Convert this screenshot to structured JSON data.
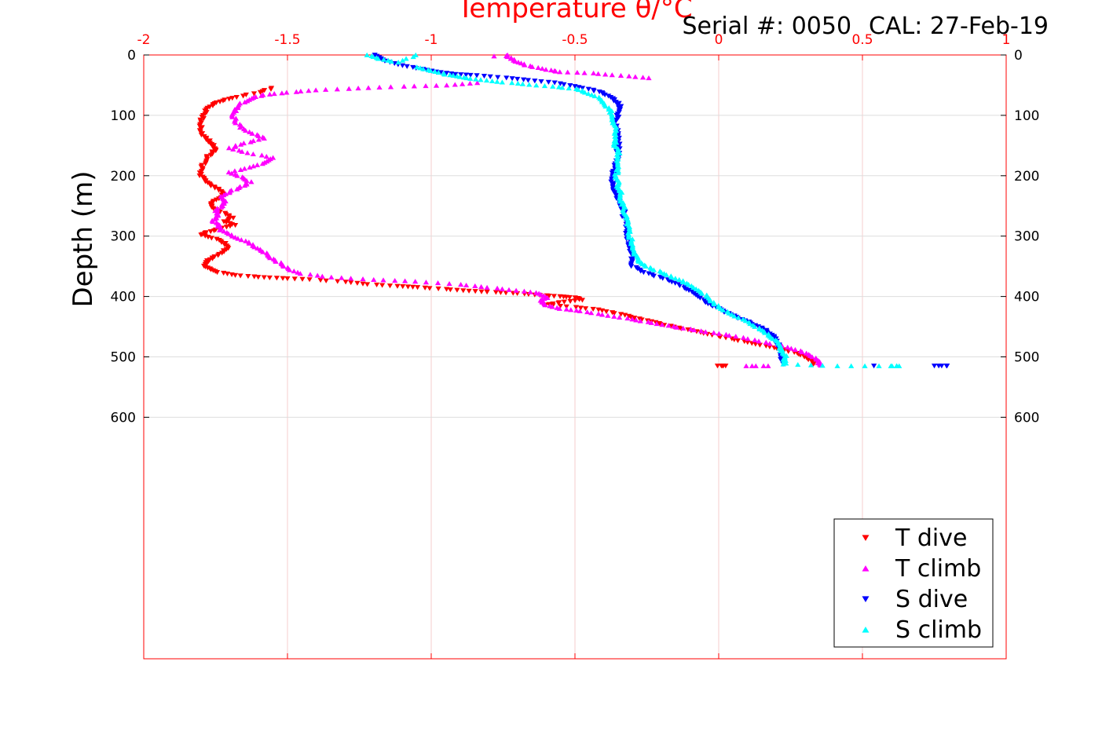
{
  "header": {
    "serial_text": "Serial #: 0050",
    "cal_text": "CAL: 27-Feb-19"
  },
  "chart_data": {
    "type": "scatter",
    "title": "",
    "xlabel": "Temperature θ/°C",
    "ylabel": "Depth (m)",
    "xlim": [
      -2,
      1
    ],
    "ylim": [
      0,
      1000
    ],
    "y_reversed": true,
    "x_axis_position": "top",
    "x_ticks": [
      "-2",
      "-1.5",
      "-1",
      "-0.5",
      "0",
      "0.5",
      "1"
    ],
    "x_tick_values": [
      -2,
      -1.5,
      -1,
      -0.5,
      0,
      0.5,
      1
    ],
    "y_ticks": [
      "0",
      "100",
      "200",
      "300",
      "400",
      "500",
      "600"
    ],
    "y_tick_values": [
      0,
      100,
      200,
      300,
      400,
      500,
      600
    ],
    "grid": true,
    "legend_position": "bottom-right",
    "axis_color": "#ff0000",
    "series": [
      {
        "name": "T dive",
        "color": "#ff0000",
        "marker": "triangle-down",
        "points": [
          [
            -1.55,
            55
          ],
          [
            -1.6,
            62
          ],
          [
            -1.68,
            70
          ],
          [
            -1.73,
            76
          ],
          [
            -1.76,
            82
          ],
          [
            -1.78,
            90
          ],
          [
            -1.79,
            100
          ],
          [
            -1.8,
            110
          ],
          [
            -1.8,
            120
          ],
          [
            -1.8,
            130
          ],
          [
            -1.78,
            140
          ],
          [
            -1.76,
            148
          ],
          [
            -1.75,
            155
          ],
          [
            -1.76,
            162
          ],
          [
            -1.78,
            170
          ],
          [
            -1.79,
            180
          ],
          [
            -1.8,
            190
          ],
          [
            -1.8,
            200
          ],
          [
            -1.79,
            208
          ],
          [
            -1.77,
            215
          ],
          [
            -1.74,
            222
          ],
          [
            -1.72,
            230
          ],
          [
            -1.74,
            238
          ],
          [
            -1.77,
            246
          ],
          [
            -1.76,
            254
          ],
          [
            -1.72,
            262
          ],
          [
            -1.69,
            270
          ],
          [
            -1.72,
            276
          ],
          [
            -1.68,
            282
          ],
          [
            -1.74,
            288
          ],
          [
            -1.78,
            294
          ],
          [
            -1.8,
            298
          ],
          [
            -1.75,
            305
          ],
          [
            -1.72,
            312
          ],
          [
            -1.71,
            320
          ],
          [
            -1.73,
            328
          ],
          [
            -1.76,
            336
          ],
          [
            -1.78,
            342
          ],
          [
            -1.79,
            348
          ],
          [
            -1.77,
            354
          ],
          [
            -1.74,
            360
          ],
          [
            -1.68,
            365
          ],
          [
            -1.6,
            368
          ],
          [
            -1.52,
            370
          ],
          [
            -1.42,
            372
          ],
          [
            -1.3,
            376
          ],
          [
            -1.22,
            380
          ],
          [
            -1.12,
            383
          ],
          [
            -1.05,
            385
          ],
          [
            -0.95,
            388
          ],
          [
            -0.87,
            391
          ],
          [
            -0.78,
            393
          ],
          [
            -0.7,
            395
          ],
          [
            -0.62,
            398
          ],
          [
            -0.55,
            400
          ],
          [
            -0.5,
            402
          ],
          [
            -0.48,
            406
          ],
          [
            -0.55,
            410
          ],
          [
            -0.6,
            414
          ],
          [
            -0.5,
            418
          ],
          [
            -0.42,
            422
          ],
          [
            -0.36,
            428
          ],
          [
            -0.3,
            434
          ],
          [
            -0.25,
            440
          ],
          [
            -0.2,
            446
          ],
          [
            -0.14,
            452
          ],
          [
            -0.08,
            458
          ],
          [
            -0.02,
            464
          ],
          [
            0.04,
            470
          ],
          [
            0.1,
            476
          ],
          [
            0.16,
            482
          ],
          [
            0.22,
            488
          ],
          [
            0.27,
            494
          ],
          [
            0.3,
            500
          ],
          [
            0.32,
            506
          ],
          [
            0.33,
            512
          ],
          [
            0.0,
            515
          ],
          [
            0.02,
            515
          ]
        ]
      },
      {
        "name": "T climb",
        "color": "#ff00ff",
        "marker": "triangle-up",
        "points": [
          [
            -0.74,
            0
          ],
          [
            -0.72,
            6
          ],
          [
            -0.7,
            12
          ],
          [
            -0.66,
            18
          ],
          [
            -0.6,
            24
          ],
          [
            -0.55,
            28
          ],
          [
            -0.44,
            30
          ],
          [
            -0.34,
            34
          ],
          [
            -0.24,
            38
          ],
          [
            -0.78,
            2
          ],
          [
            -0.84,
            46
          ],
          [
            -0.95,
            50
          ],
          [
            -1.1,
            52
          ],
          [
            -1.25,
            55
          ],
          [
            -1.4,
            58
          ],
          [
            -1.5,
            62
          ],
          [
            -1.58,
            66
          ],
          [
            -1.63,
            72
          ],
          [
            -1.66,
            80
          ],
          [
            -1.68,
            90
          ],
          [
            -1.69,
            100
          ],
          [
            -1.68,
            110
          ],
          [
            -1.66,
            120
          ],
          [
            -1.62,
            130
          ],
          [
            -1.58,
            138
          ],
          [
            -1.65,
            146
          ],
          [
            -1.7,
            154
          ],
          [
            -1.64,
            162
          ],
          [
            -1.55,
            170
          ],
          [
            -1.58,
            178
          ],
          [
            -1.63,
            186
          ],
          [
            -1.7,
            194
          ],
          [
            -1.66,
            202
          ],
          [
            -1.63,
            210
          ],
          [
            -1.66,
            218
          ],
          [
            -1.7,
            226
          ],
          [
            -1.73,
            234
          ],
          [
            -1.72,
            242
          ],
          [
            -1.73,
            250
          ],
          [
            -1.75,
            258
          ],
          [
            -1.74,
            266
          ],
          [
            -1.76,
            274
          ],
          [
            -1.74,
            282
          ],
          [
            -1.73,
            290
          ],
          [
            -1.7,
            298
          ],
          [
            -1.66,
            306
          ],
          [
            -1.62,
            314
          ],
          [
            -1.6,
            322
          ],
          [
            -1.57,
            330
          ],
          [
            -1.55,
            338
          ],
          [
            -1.52,
            346
          ],
          [
            -1.5,
            354
          ],
          [
            -1.45,
            362
          ],
          [
            -1.35,
            368
          ],
          [
            -1.2,
            372
          ],
          [
            -1.05,
            375
          ],
          [
            -0.9,
            380
          ],
          [
            -0.8,
            385
          ],
          [
            -0.7,
            390
          ],
          [
            -0.62,
            395
          ],
          [
            -0.6,
            402
          ],
          [
            -0.62,
            408
          ],
          [
            -0.6,
            414
          ],
          [
            -0.55,
            420
          ],
          [
            -0.48,
            424
          ],
          [
            -0.4,
            430
          ],
          [
            -0.32,
            436
          ],
          [
            -0.25,
            442
          ],
          [
            -0.18,
            448
          ],
          [
            -0.1,
            454
          ],
          [
            -0.02,
            460
          ],
          [
            0.06,
            466
          ],
          [
            0.14,
            474
          ],
          [
            0.22,
            482
          ],
          [
            0.28,
            490
          ],
          [
            0.32,
            498
          ],
          [
            0.35,
            506
          ],
          [
            0.35,
            514
          ],
          [
            0.1,
            515
          ],
          [
            0.17,
            515
          ]
        ]
      },
      {
        "name": "S dive",
        "color": "#0000ff",
        "marker": "triangle-down",
        "points": [
          [
            -1.2,
            0
          ],
          [
            -1.17,
            8
          ],
          [
            -1.12,
            16
          ],
          [
            -1.05,
            22
          ],
          [
            -0.98,
            28
          ],
          [
            -0.92,
            32
          ],
          [
            -0.84,
            34
          ],
          [
            -0.74,
            38
          ],
          [
            -0.66,
            42
          ],
          [
            -0.57,
            46
          ],
          [
            -0.5,
            52
          ],
          [
            -0.44,
            58
          ],
          [
            -0.4,
            64
          ],
          [
            -0.37,
            72
          ],
          [
            -0.35,
            80
          ],
          [
            -0.34,
            90
          ],
          [
            -0.35,
            100
          ],
          [
            -0.36,
            110
          ],
          [
            -0.36,
            120
          ],
          [
            -0.35,
            130
          ],
          [
            -0.35,
            140
          ],
          [
            -0.35,
            150
          ],
          [
            -0.35,
            160
          ],
          [
            -0.35,
            170
          ],
          [
            -0.36,
            180
          ],
          [
            -0.36,
            190
          ],
          [
            -0.37,
            200
          ],
          [
            -0.37,
            210
          ],
          [
            -0.37,
            220
          ],
          [
            -0.36,
            230
          ],
          [
            -0.35,
            240
          ],
          [
            -0.34,
            250
          ],
          [
            -0.33,
            260
          ],
          [
            -0.33,
            270
          ],
          [
            -0.32,
            280
          ],
          [
            -0.32,
            290
          ],
          [
            -0.32,
            300
          ],
          [
            -0.31,
            310
          ],
          [
            -0.31,
            320
          ],
          [
            -0.3,
            330
          ],
          [
            -0.3,
            340
          ],
          [
            -0.3,
            350
          ],
          [
            -0.27,
            358
          ],
          [
            -0.22,
            366
          ],
          [
            -0.17,
            374
          ],
          [
            -0.13,
            382
          ],
          [
            -0.1,
            390
          ],
          [
            -0.07,
            400
          ],
          [
            -0.04,
            410
          ],
          [
            -0.01,
            418
          ],
          [
            0.02,
            426
          ],
          [
            0.06,
            434
          ],
          [
            0.1,
            442
          ],
          [
            0.14,
            450
          ],
          [
            0.17,
            458
          ],
          [
            0.19,
            466
          ],
          [
            0.2,
            474
          ],
          [
            0.21,
            482
          ],
          [
            0.21,
            490
          ],
          [
            0.22,
            498
          ],
          [
            0.22,
            506
          ],
          [
            0.22,
            512
          ],
          [
            0.54,
            515
          ],
          [
            0.75,
            515
          ],
          [
            0.8,
            515
          ]
        ]
      },
      {
        "name": "S climb",
        "color": "#00ffff",
        "marker": "triangle-up",
        "points": [
          [
            -1.22,
            0
          ],
          [
            -1.18,
            6
          ],
          [
            -1.12,
            12
          ],
          [
            -1.05,
            0
          ],
          [
            -1.05,
            20
          ],
          [
            -1.0,
            26
          ],
          [
            -0.95,
            32
          ],
          [
            -0.9,
            36
          ],
          [
            -0.85,
            40
          ],
          [
            -0.77,
            44
          ],
          [
            -0.68,
            48
          ],
          [
            -0.58,
            52
          ],
          [
            -0.5,
            56
          ],
          [
            -0.46,
            62
          ],
          [
            -0.42,
            70
          ],
          [
            -0.4,
            80
          ],
          [
            -0.38,
            90
          ],
          [
            -0.37,
            100
          ],
          [
            -0.37,
            110
          ],
          [
            -0.36,
            120
          ],
          [
            -0.36,
            130
          ],
          [
            -0.36,
            140
          ],
          [
            -0.36,
            150
          ],
          [
            -0.35,
            160
          ],
          [
            -0.35,
            170
          ],
          [
            -0.35,
            180
          ],
          [
            -0.35,
            190
          ],
          [
            -0.36,
            200
          ],
          [
            -0.35,
            210
          ],
          [
            -0.35,
            220
          ],
          [
            -0.34,
            230
          ],
          [
            -0.34,
            240
          ],
          [
            -0.33,
            250
          ],
          [
            -0.33,
            260
          ],
          [
            -0.32,
            270
          ],
          [
            -0.32,
            280
          ],
          [
            -0.31,
            290
          ],
          [
            -0.31,
            300
          ],
          [
            -0.3,
            310
          ],
          [
            -0.3,
            320
          ],
          [
            -0.29,
            330
          ],
          [
            -0.28,
            340
          ],
          [
            -0.26,
            348
          ],
          [
            -0.22,
            356
          ],
          [
            -0.18,
            364
          ],
          [
            -0.14,
            372
          ],
          [
            -0.1,
            380
          ],
          [
            -0.07,
            390
          ],
          [
            -0.04,
            400
          ],
          [
            -0.02,
            410
          ],
          [
            0.01,
            420
          ],
          [
            0.05,
            430
          ],
          [
            0.09,
            440
          ],
          [
            0.13,
            450
          ],
          [
            0.16,
            458
          ],
          [
            0.18,
            466
          ],
          [
            0.2,
            474
          ],
          [
            0.21,
            482
          ],
          [
            0.22,
            490
          ],
          [
            0.23,
            498
          ],
          [
            0.23,
            506
          ],
          [
            0.23,
            512
          ],
          [
            0.41,
            515
          ],
          [
            0.6,
            515
          ],
          [
            0.63,
            515
          ]
        ]
      }
    ]
  }
}
